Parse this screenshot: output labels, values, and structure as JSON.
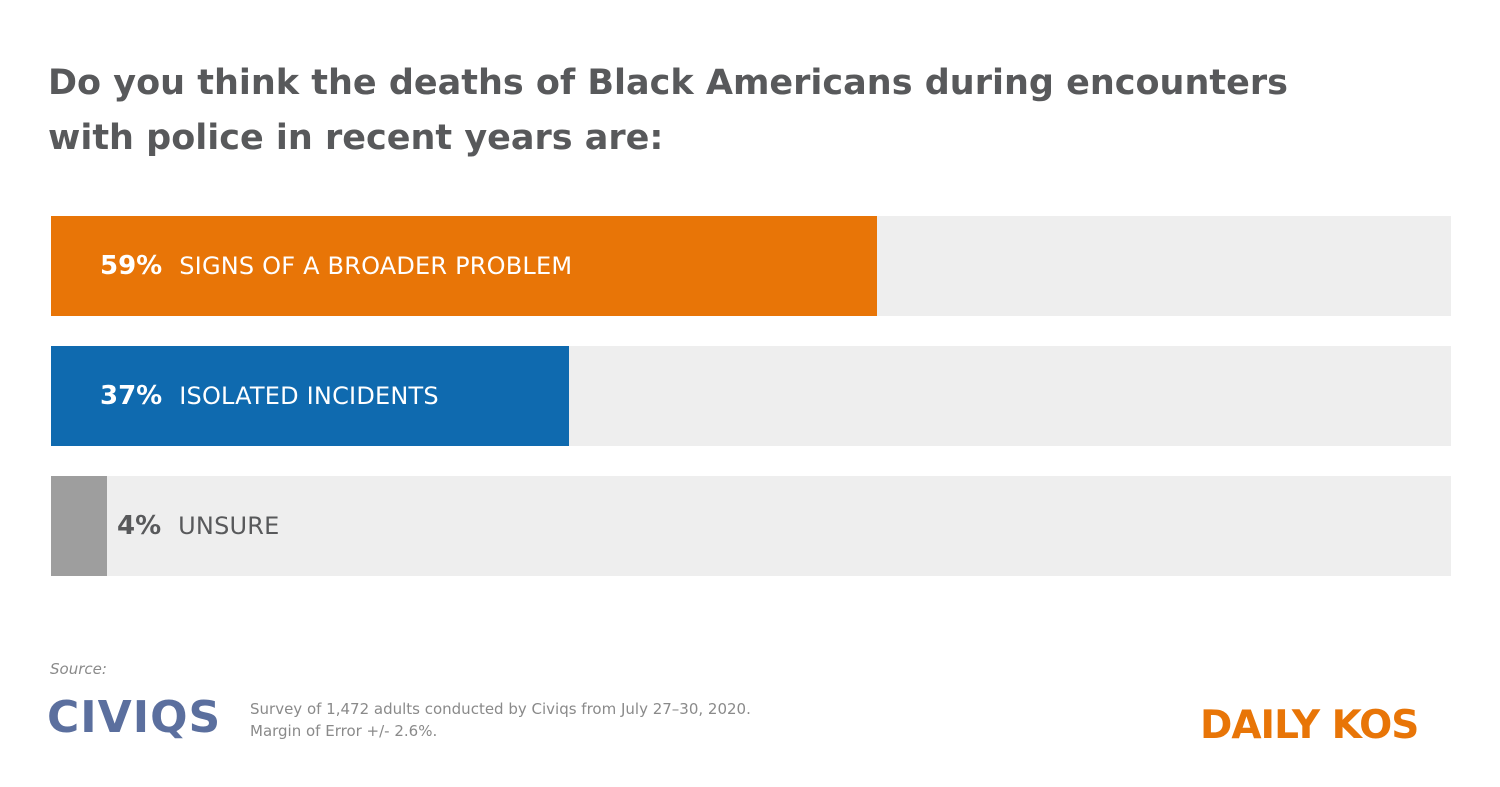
{
  "title": "Do you think the deaths of Black Americans during encounters with police in recent years are:",
  "chart_data": {
    "type": "bar",
    "orientation": "horizontal",
    "categories": [
      "SIGNS OF A BROADER PROBLEM",
      "ISOLATED INCIDENTS",
      "UNSURE"
    ],
    "values": [
      59,
      37,
      4
    ],
    "value_labels": [
      "59%",
      "37%",
      "4%"
    ],
    "xlim": [
      0,
      100
    ],
    "colors": [
      "#e87507",
      "#0f6aaf",
      "#9e9e9e"
    ],
    "track_color": "#eeeeee",
    "grid": false,
    "legend": "none"
  },
  "source": {
    "label": "Source:",
    "logo_text": "CIVIQS",
    "logo_color": "#5b6f9e",
    "note_line1": "Survey of 1,472 adults conducted by Civiqs from July 27–30, 2020.",
    "note_line2": "Margin of Error +/- 2.6%."
  },
  "brand": {
    "text": "DAILY KOS",
    "color": "#e87507"
  }
}
